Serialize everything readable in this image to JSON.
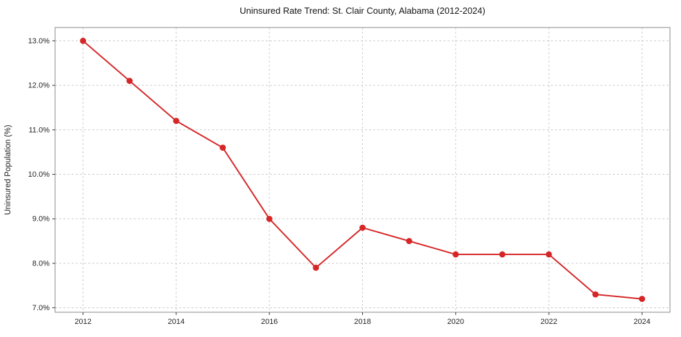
{
  "page": {
    "background_color": "#ffffff"
  },
  "chart_data": {
    "type": "line",
    "title": "Uninsured Rate Trend: St. Clair County, Alabama (2012-2024)",
    "xlabel": "",
    "ylabel": "Uninsured Population (%)",
    "x": [
      2012,
      2013,
      2014,
      2015,
      2016,
      2017,
      2018,
      2019,
      2020,
      2021,
      2022,
      2023,
      2024
    ],
    "values": [
      13.0,
      12.1,
      11.2,
      10.6,
      9.0,
      7.9,
      8.8,
      8.5,
      8.2,
      8.2,
      8.2,
      7.3,
      7.2
    ],
    "xticks": [
      2012,
      2014,
      2016,
      2018,
      2020,
      2022,
      2024
    ],
    "yticks": [
      7.0,
      8.0,
      9.0,
      10.0,
      11.0,
      12.0,
      13.0
    ],
    "ytick_suffix": "%",
    "xlim": [
      2011.4,
      2024.6
    ],
    "ylim": [
      6.9,
      13.3
    ],
    "grid": true,
    "legend": "none",
    "line_color": "#d62728",
    "marker_color": "#d62728",
    "grid_color": "#cccccc",
    "axis_color": "#8a8a8a",
    "tick_color": "#333333",
    "label_color": "#222222"
  }
}
